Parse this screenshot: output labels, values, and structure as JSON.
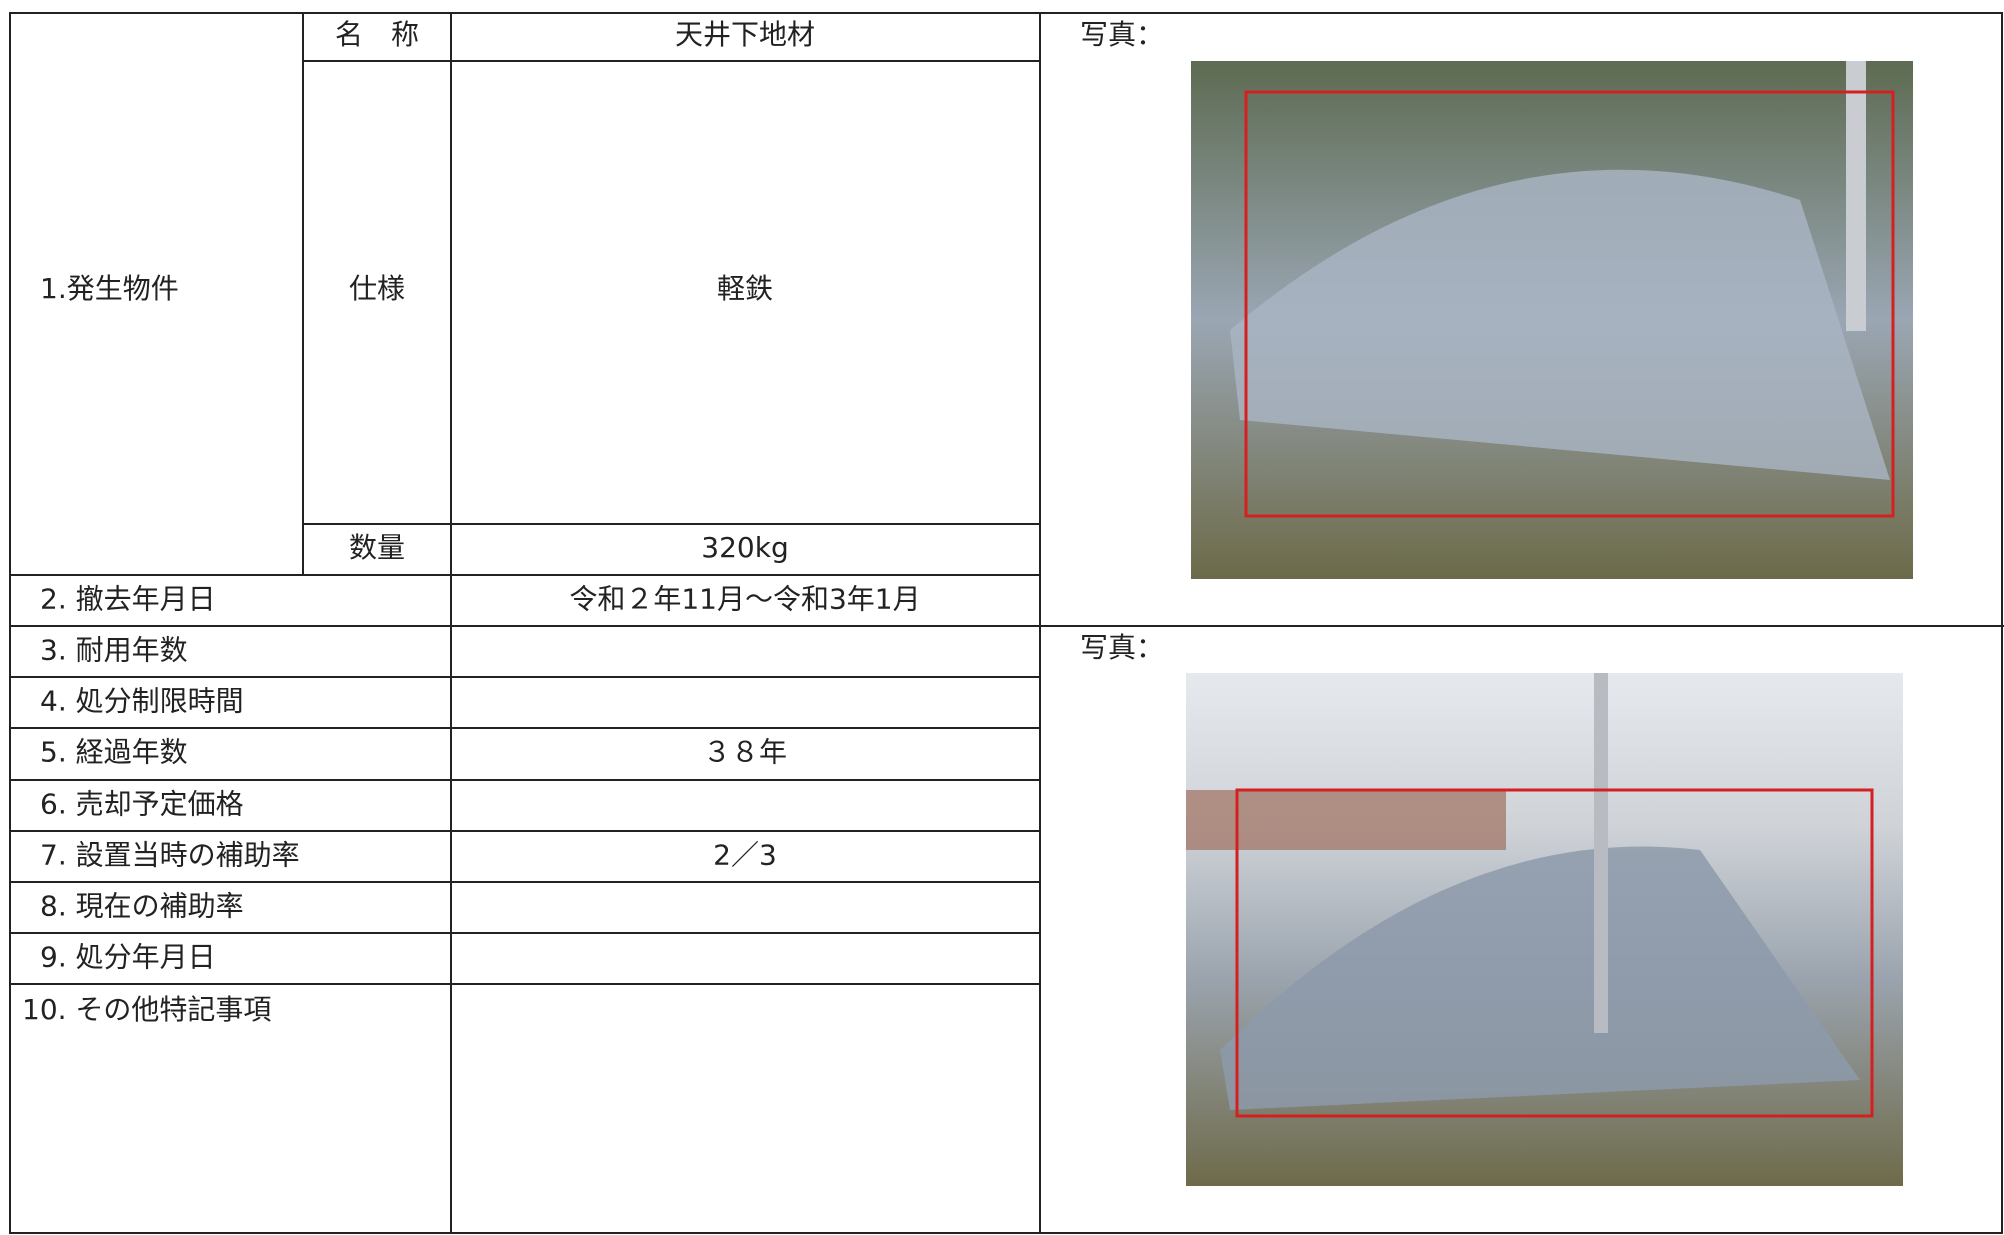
{
  "item1": {
    "label": "1.発生物件",
    "name_label": "名　称",
    "name": "天井下地材",
    "spec_label": "仕様",
    "spec": "軽鉄",
    "qty_label": "数量",
    "qty": "320kg"
  },
  "rows": [
    {
      "label": "2. 撤去年月日",
      "value": "令和２年11月～令和3年1月"
    },
    {
      "label": "3. 耐用年数"
    },
    {
      "label": "4. 処分制限時間"
    },
    {
      "label": "5. 経過年数",
      "value": "３８年"
    },
    {
      "label": "6. 売却予定価格"
    },
    {
      "label": "7. 設置当時の補助率",
      "value": "2／3"
    },
    {
      "label": "8. 現在の補助率"
    },
    {
      "label": "9. 処分年月日"
    },
    {
      "label": "10. その他特記事項"
    }
  ],
  "photos": [
    {
      "label": "写真："
    },
    {
      "label": "写真："
    }
  ]
}
